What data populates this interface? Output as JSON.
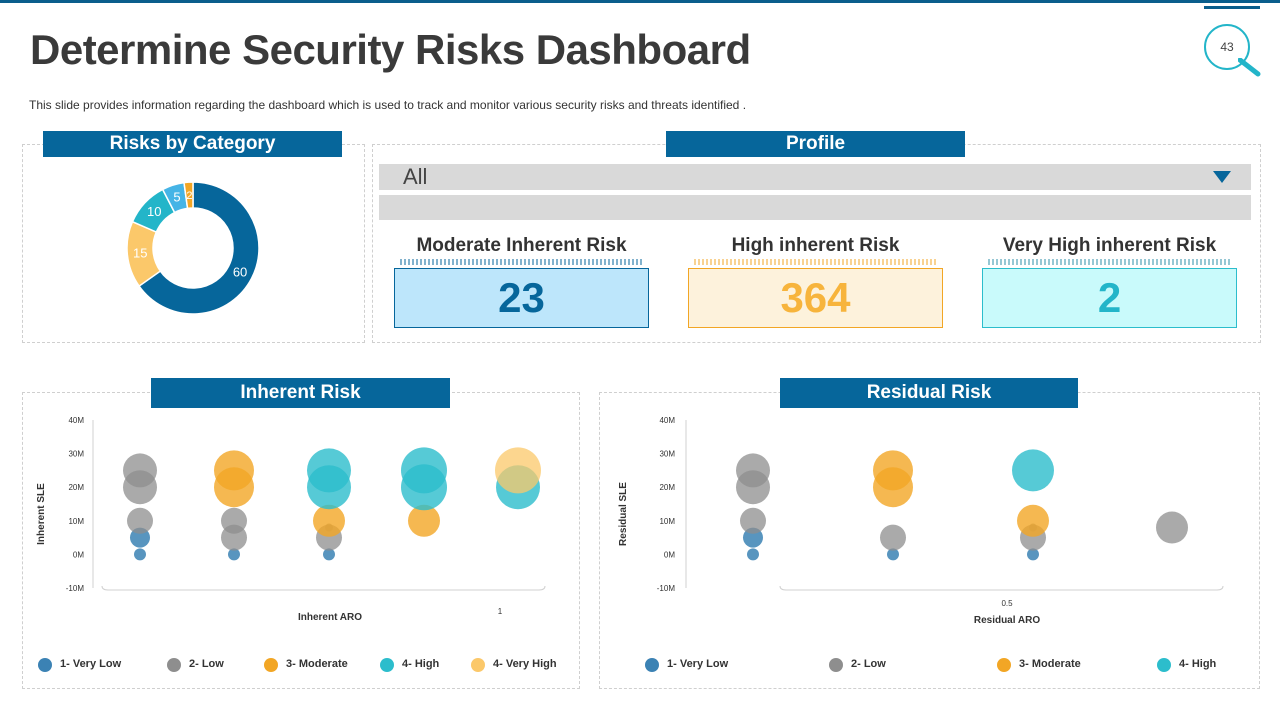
{
  "page": {
    "title": "Determine Security Risks Dashboard",
    "subtitle": "This slide provides  information  regarding  the  dashboard  which  is  used  to  track  and  monitor  various  security  risks  and  threats  identified  .",
    "slide_number": "43"
  },
  "colors": {
    "brand": "#06669b",
    "accent": "#23b5c9",
    "very_low": "#3b82b4",
    "low": "#8e8e8e",
    "moderate": "#f2a625",
    "high": "#2cbdcc",
    "very_high": "#fbc86a"
  },
  "risks_by_category": {
    "header": "Risks by Category"
  },
  "profile": {
    "header": "Profile",
    "selected": "All",
    "kpis": [
      {
        "label": "Moderate Inherent Risk",
        "value": "23"
      },
      {
        "label": "High inherent Risk",
        "value": "364"
      },
      {
        "label": "Very High inherent Risk",
        "value": "2"
      }
    ]
  },
  "inherent_risk": {
    "header": "Inherent Risk",
    "legend": [
      "1- Very Low",
      "2- Low",
      "3- Moderate",
      "4- High",
      "4- Very High"
    ]
  },
  "residual_risk": {
    "header": "Residual Risk",
    "legend": [
      "1- Very Low",
      "2- Low",
      "3- Moderate",
      "4- High"
    ]
  },
  "chart_data": [
    {
      "type": "pie",
      "donut": true,
      "values": [
        60,
        15,
        10,
        5,
        2
      ],
      "labels": [
        "60",
        "15",
        "10",
        "5",
        "2"
      ],
      "colors": [
        "#06669b",
        "#fbc86a",
        "#23b5c9",
        "#45b4e6",
        "#f2a625"
      ]
    },
    {
      "type": "scatter",
      "bubble": true,
      "xlabel": "Inherent ARO",
      "ylabel": "Inherent SLE",
      "y_ticks": [
        "40M",
        "30M",
        "20M",
        "10M",
        "0M",
        "-10M"
      ],
      "ylim": [
        -10,
        40
      ],
      "x_tick_label": "1",
      "columns": 5,
      "points": [
        {
          "col": 1,
          "y": 0,
          "r": 6,
          "cat": "very_low"
        },
        {
          "col": 1,
          "y": 5,
          "r": 10,
          "cat": "very_low"
        },
        {
          "col": 1,
          "y": 10,
          "r": 13,
          "cat": "low"
        },
        {
          "col": 1,
          "y": 20,
          "r": 17,
          "cat": "low"
        },
        {
          "col": 1,
          "y": 25,
          "r": 17,
          "cat": "low"
        },
        {
          "col": 2,
          "y": 0,
          "r": 6,
          "cat": "very_low"
        },
        {
          "col": 2,
          "y": 5,
          "r": 13,
          "cat": "low"
        },
        {
          "col": 2,
          "y": 10,
          "r": 13,
          "cat": "low"
        },
        {
          "col": 2,
          "y": 20,
          "r": 20,
          "cat": "moderate"
        },
        {
          "col": 2,
          "y": 25,
          "r": 20,
          "cat": "moderate"
        },
        {
          "col": 3,
          "y": 0,
          "r": 6,
          "cat": "very_low"
        },
        {
          "col": 3,
          "y": 5,
          "r": 13,
          "cat": "low"
        },
        {
          "col": 3,
          "y": 8,
          "r": 4,
          "cat": "low"
        },
        {
          "col": 3,
          "y": 10,
          "r": 16,
          "cat": "moderate"
        },
        {
          "col": 3,
          "y": 20,
          "r": 22,
          "cat": "high"
        },
        {
          "col": 3,
          "y": 25,
          "r": 22,
          "cat": "high"
        },
        {
          "col": 4,
          "y": 10,
          "r": 16,
          "cat": "moderate"
        },
        {
          "col": 4,
          "y": 20,
          "r": 23,
          "cat": "high"
        },
        {
          "col": 4,
          "y": 25,
          "r": 23,
          "cat": "high"
        },
        {
          "col": 5,
          "y": 20,
          "r": 22,
          "cat": "high"
        },
        {
          "col": 5,
          "y": 25,
          "r": 23,
          "cat": "very_high"
        }
      ]
    },
    {
      "type": "scatter",
      "bubble": true,
      "xlabel": "Residual ARO",
      "ylabel": "Residual SLE",
      "y_ticks": [
        "40M",
        "30M",
        "20M",
        "10M",
        "0M",
        "-10M"
      ],
      "ylim": [
        -10,
        40
      ],
      "x_tick_label": "0.5",
      "columns": 4,
      "points": [
        {
          "col": 1,
          "y": 0,
          "r": 6,
          "cat": "very_low"
        },
        {
          "col": 1,
          "y": 5,
          "r": 10,
          "cat": "very_low"
        },
        {
          "col": 1,
          "y": 10,
          "r": 13,
          "cat": "low"
        },
        {
          "col": 1,
          "y": 20,
          "r": 17,
          "cat": "low"
        },
        {
          "col": 1,
          "y": 25,
          "r": 17,
          "cat": "low"
        },
        {
          "col": 2,
          "y": 0,
          "r": 6,
          "cat": "very_low"
        },
        {
          "col": 2,
          "y": 5,
          "r": 13,
          "cat": "low"
        },
        {
          "col": 2,
          "y": 20,
          "r": 20,
          "cat": "moderate"
        },
        {
          "col": 2,
          "y": 25,
          "r": 20,
          "cat": "moderate"
        },
        {
          "col": 3,
          "y": 0,
          "r": 6,
          "cat": "very_low"
        },
        {
          "col": 3,
          "y": 5,
          "r": 13,
          "cat": "low"
        },
        {
          "col": 3,
          "y": 8,
          "r": 4,
          "cat": "low"
        },
        {
          "col": 3,
          "y": 10,
          "r": 16,
          "cat": "moderate"
        },
        {
          "col": 3,
          "y": 25,
          "r": 21,
          "cat": "high"
        },
        {
          "col": 4,
          "y": 8,
          "r": 16,
          "cat": "low"
        }
      ]
    }
  ]
}
